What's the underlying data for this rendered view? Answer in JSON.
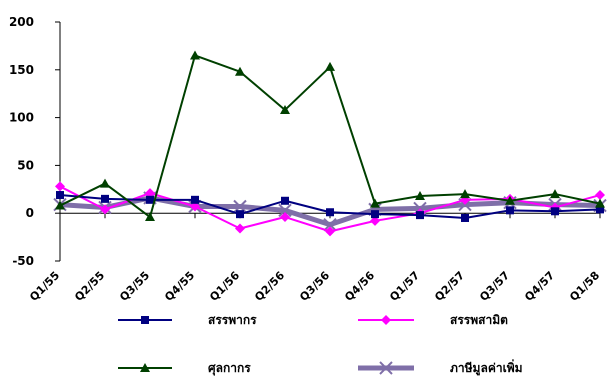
{
  "chart_data": {
    "type": "line",
    "categories": [
      "Q1/55",
      "Q2/55",
      "Q3/55",
      "Q4/55",
      "Q1/56",
      "Q2/56",
      "Q3/56",
      "Q4/56",
      "Q1/57",
      "Q2/57",
      "Q3/57",
      "Q4/57",
      "Q1/58"
    ],
    "ylim": [
      -50,
      200
    ],
    "yticks": [
      -50,
      0,
      50,
      100,
      150,
      200
    ],
    "grid": false,
    "legend_position": "bottom",
    "series": [
      {
        "name": "สรรพากร",
        "color": "#000080",
        "marker": "square",
        "width": 2,
        "values": [
          19,
          15,
          14,
          14,
          -1,
          13,
          1,
          -1,
          -2,
          -5,
          3,
          2,
          4
        ]
      },
      {
        "name": "สรรพสามิต",
        "color": "#ff00ff",
        "marker": "diamond",
        "width": 2,
        "values": [
          28,
          4,
          21,
          7,
          -16,
          -4,
          -19,
          -8,
          0,
          14,
          15,
          6,
          19
        ]
      },
      {
        "name": "ศุลกากร",
        "color": "#004000",
        "marker": "triangle",
        "width": 2,
        "values": [
          8,
          31,
          -4,
          165,
          148,
          108,
          153,
          10,
          18,
          20,
          13,
          20,
          10
        ]
      },
      {
        "name": "ภาษีมูลค่าเพิ่ม",
        "color": "#7f6fa8",
        "marker": "x",
        "width": 5,
        "values": [
          9,
          6,
          16,
          7,
          7,
          3,
          -12,
          4,
          5,
          9,
          11,
          9,
          8
        ]
      }
    ]
  }
}
